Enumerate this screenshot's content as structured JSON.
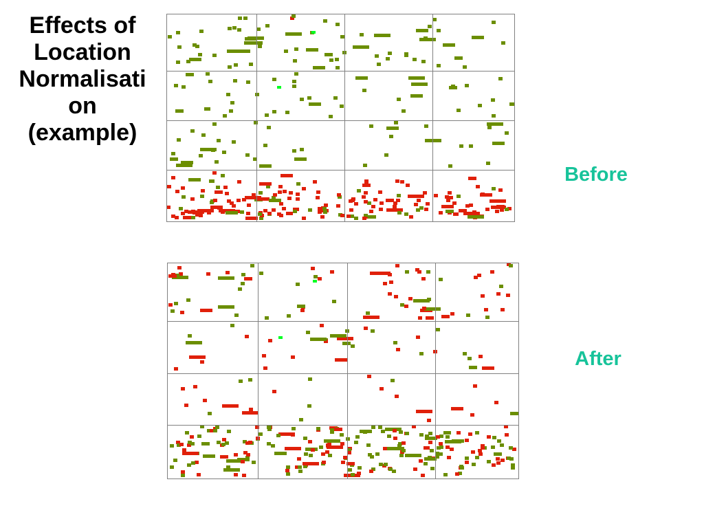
{
  "slide": {
    "title_lines": [
      "Effects of",
      "Location",
      "Normalisati",
      "on",
      "(example)"
    ],
    "label_before": "Before",
    "label_after": "After"
  },
  "colors": {
    "label": "#17c39a",
    "green": "#6b8e00",
    "bright_green": "#00ff22",
    "red": "#e0200a",
    "grid_line": "#808080"
  }
}
